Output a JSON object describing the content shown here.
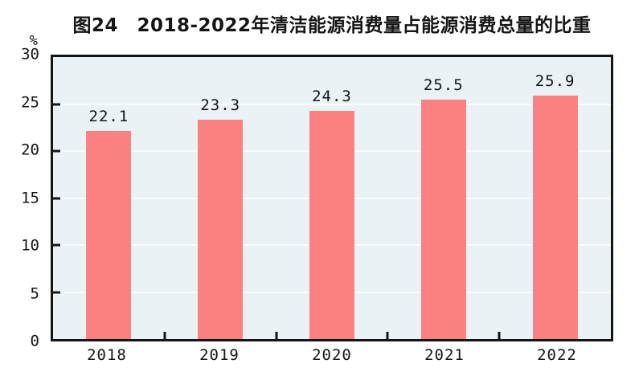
{
  "chart_data": {
    "type": "bar",
    "title": "图24　2018-2022年清洁能源消费量占能源消费总量的比重",
    "unit_label": "%",
    "categories": [
      "2018",
      "2019",
      "2020",
      "2021",
      "2022"
    ],
    "values": [
      22.1,
      23.3,
      24.3,
      25.5,
      25.9
    ],
    "value_labels": [
      "22.1",
      "23.3",
      "24.3",
      "25.5",
      "25.9"
    ],
    "series_name": "清洁能源消费量占能源消费总量的比重",
    "xlabel": "",
    "ylabel": "%",
    "ylim": [
      0,
      30
    ],
    "yticks": [
      0,
      5,
      10,
      15,
      20,
      25,
      30
    ],
    "grid": "horizontal",
    "legend": "none",
    "colors": {
      "bar": "#fa8181",
      "plot_bg": "#ebf2f5",
      "gridline": "#f8fcfd",
      "axis": "#151515",
      "text": "#151515"
    }
  }
}
